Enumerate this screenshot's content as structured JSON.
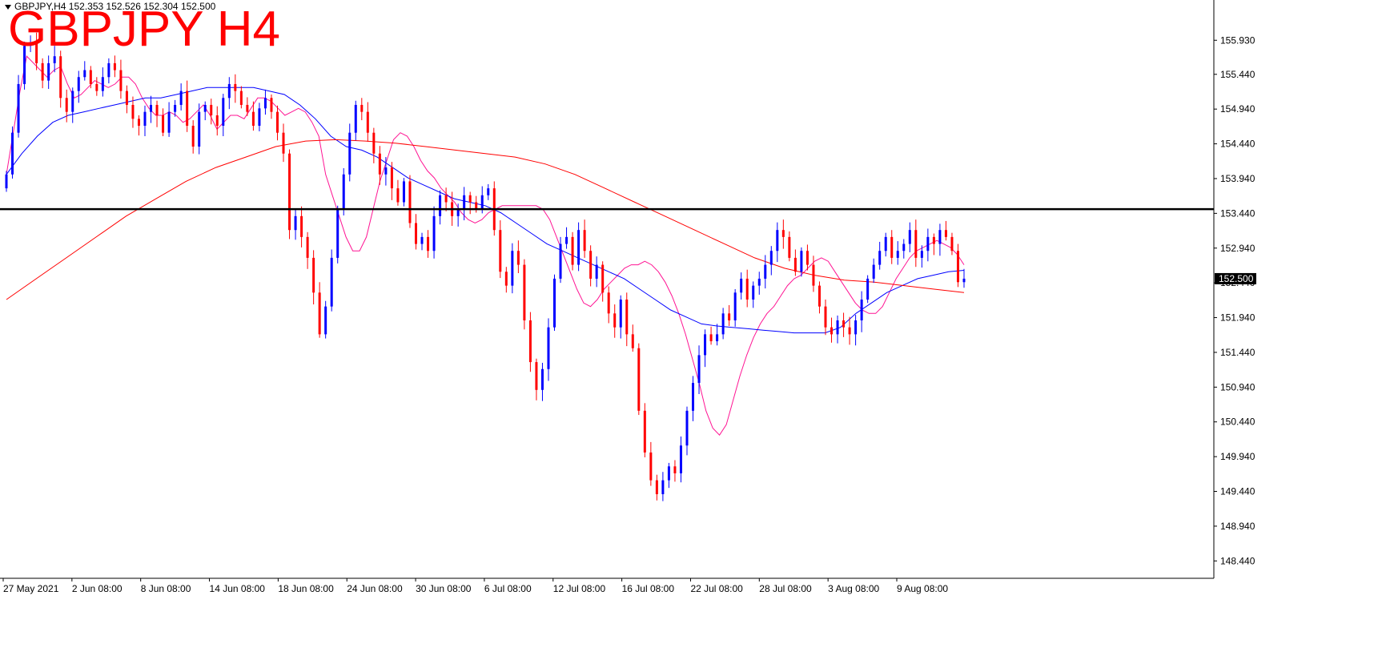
{
  "header": {
    "symbol_line": "GBPJPY,H4  152.353 152.526 152.304 152.500",
    "big_title": "GBPJPY H4"
  },
  "colors": {
    "bull": "#0000ff",
    "bear": "#ff0000",
    "ma_fast": "#ff1493",
    "ma_mid": "#0000ff",
    "ma_slow": "#ff0000",
    "level_line": "#000000",
    "price_tag_bg": "#000000"
  },
  "chart_data": {
    "type": "candlestick",
    "symbol": "GBPJPY",
    "timeframe": "H4",
    "last_price_label": "152.500",
    "horizontal_level": 153.5,
    "ylim": [
      148.19,
      156.44
    ],
    "y_ticks": [
      "155.930",
      "155.440",
      "154.940",
      "154.440",
      "153.940",
      "153.440",
      "152.940",
      "152.440",
      "151.940",
      "151.440",
      "150.940",
      "150.440",
      "149.940",
      "149.440",
      "148.940",
      "148.440"
    ],
    "x_ticks": [
      "27 May 2021",
      "2 Jun 08:00",
      "8 Jun 08:00",
      "14 Jun 08:00",
      "18 Jun 08:00",
      "24 Jun 08:00",
      "30 Jun 08:00",
      "6 Jul 08:00",
      "12 Jul 08:00",
      "16 Jul 08:00",
      "22 Jul 08:00",
      "28 Jul 08:00",
      "3 Aug 08:00",
      "9 Aug 08:00"
    ],
    "closes": [
      154.0,
      154.6,
      155.3,
      155.85,
      155.9,
      155.6,
      155.35,
      155.6,
      155.7,
      155.1,
      154.9,
      155.2,
      155.4,
      155.5,
      155.3,
      155.2,
      155.4,
      155.6,
      155.5,
      155.2,
      155.0,
      154.8,
      154.7,
      154.9,
      155.0,
      154.85,
      154.6,
      154.9,
      155.0,
      155.2,
      154.7,
      154.4,
      154.9,
      155.0,
      154.85,
      154.7,
      155.1,
      155.3,
      155.2,
      155.0,
      154.9,
      154.7,
      154.95,
      155.1,
      154.9,
      154.6,
      154.3,
      153.2,
      153.4,
      153.1,
      152.8,
      152.3,
      151.7,
      152.1,
      152.8,
      153.5,
      154.0,
      154.6,
      155.0,
      154.9,
      154.6,
      154.3,
      154.0,
      154.1,
      153.8,
      153.6,
      153.9,
      153.3,
      153.0,
      153.1,
      152.9,
      153.4,
      153.7,
      153.6,
      153.4,
      153.5,
      153.7,
      153.6,
      153.5,
      153.7,
      153.8,
      153.2,
      152.6,
      152.4,
      152.9,
      152.7,
      151.9,
      151.3,
      150.9,
      151.2,
      151.8,
      152.5,
      153.0,
      153.1,
      152.7,
      153.2,
      152.9,
      152.5,
      152.7,
      152.3,
      152.0,
      151.8,
      152.2,
      151.7,
      151.5,
      150.6,
      150.0,
      149.6,
      149.4,
      149.6,
      149.8,
      149.7,
      150.1,
      150.6,
      151.0,
      151.4,
      151.7,
      151.6,
      151.7,
      152.0,
      151.9,
      152.3,
      152.5,
      152.2,
      152.4,
      152.5,
      152.7,
      152.9,
      153.2,
      153.1,
      152.8,
      152.6,
      152.9,
      152.7,
      152.4,
      152.1,
      151.8,
      151.7,
      151.9,
      151.8,
      151.7,
      151.9,
      152.2,
      152.5,
      152.7,
      152.9,
      153.1,
      152.8,
      152.9,
      153.0,
      153.2,
      152.8,
      152.9,
      153.1,
      153.0,
      153.2,
      153.1,
      152.9,
      152.45,
      152.5
    ],
    "series": [
      {
        "name": "",
        "values": [
          154.0,
          154.6,
          155.2,
          155.7,
          155.6,
          155.5,
          155.4,
          155.5,
          155.55,
          155.3,
          155.1,
          155.15,
          155.25,
          155.35,
          155.3,
          155.25,
          155.3,
          155.4,
          155.4,
          155.3,
          155.1,
          154.95,
          154.85,
          154.85,
          154.9,
          154.85,
          154.75,
          154.8,
          154.9,
          155.0,
          154.85,
          154.65,
          154.75,
          154.85,
          154.85,
          154.8,
          154.95,
          155.1,
          155.1,
          155.05,
          154.95,
          154.85,
          154.9,
          154.95,
          154.9,
          154.75,
          154.55,
          154.0,
          153.7,
          153.4,
          153.1,
          152.9,
          152.9,
          153.1,
          153.5,
          153.9,
          154.2,
          154.5,
          154.6,
          154.55,
          154.4,
          154.2,
          154.05,
          153.95,
          153.8,
          153.7,
          153.6,
          153.45,
          153.35,
          153.3,
          153.35,
          153.45,
          153.5,
          153.55,
          153.55,
          153.55,
          153.55,
          153.55,
          153.55,
          153.5,
          153.35,
          153.1,
          152.85,
          152.6,
          152.35,
          152.15,
          152.1,
          152.2,
          152.35,
          152.45,
          152.55,
          152.65,
          152.7,
          152.7,
          152.75,
          152.7,
          152.6,
          152.45,
          152.25,
          152.0,
          151.7,
          151.35,
          151.0,
          150.6,
          150.35,
          150.25,
          150.4,
          150.75,
          151.1,
          151.4,
          151.65,
          151.85,
          152.0,
          152.1,
          152.25,
          152.4,
          152.5,
          152.55,
          152.65,
          152.75,
          152.8,
          152.75,
          152.6,
          152.45,
          152.3,
          152.15,
          152.05,
          152.0,
          152.0,
          152.1,
          152.3,
          152.5,
          152.65,
          152.8,
          152.9,
          152.95,
          153.0,
          153.05,
          153.0,
          152.95,
          152.85,
          152.7
        ]
      },
      {
        "name": "",
        "values": [
          154.0,
          154.3,
          154.55,
          154.75,
          154.85,
          154.9,
          154.95,
          155.0,
          155.05,
          155.1,
          155.1,
          155.15,
          155.2,
          155.25,
          155.25,
          155.25,
          155.25,
          155.2,
          155.15,
          155.0,
          154.8,
          154.55,
          154.4,
          154.35,
          154.25,
          154.1,
          153.95,
          153.85,
          153.75,
          153.65,
          153.6,
          153.55,
          153.45,
          153.3,
          153.15,
          153.0,
          152.9,
          152.8,
          152.7,
          152.6,
          152.5,
          152.35,
          152.2,
          152.05,
          151.95,
          151.85,
          151.82,
          151.8,
          151.78,
          151.76,
          151.74,
          151.72,
          151.72,
          151.72,
          151.8,
          152.0,
          152.15,
          152.3,
          152.4,
          152.5,
          152.55,
          152.6,
          152.62
        ]
      },
      {
        "name": "",
        "values": [
          152.2,
          152.5,
          152.8,
          153.1,
          153.4,
          153.65,
          153.9,
          154.1,
          154.25,
          154.4,
          154.48,
          154.5,
          154.48,
          154.45,
          154.4,
          154.35,
          154.3,
          154.25,
          154.15,
          154.0,
          153.8,
          153.6,
          153.4,
          153.2,
          153.0,
          152.8,
          152.65,
          152.55,
          152.48,
          152.45,
          152.4,
          152.35,
          152.3
        ]
      }
    ]
  }
}
